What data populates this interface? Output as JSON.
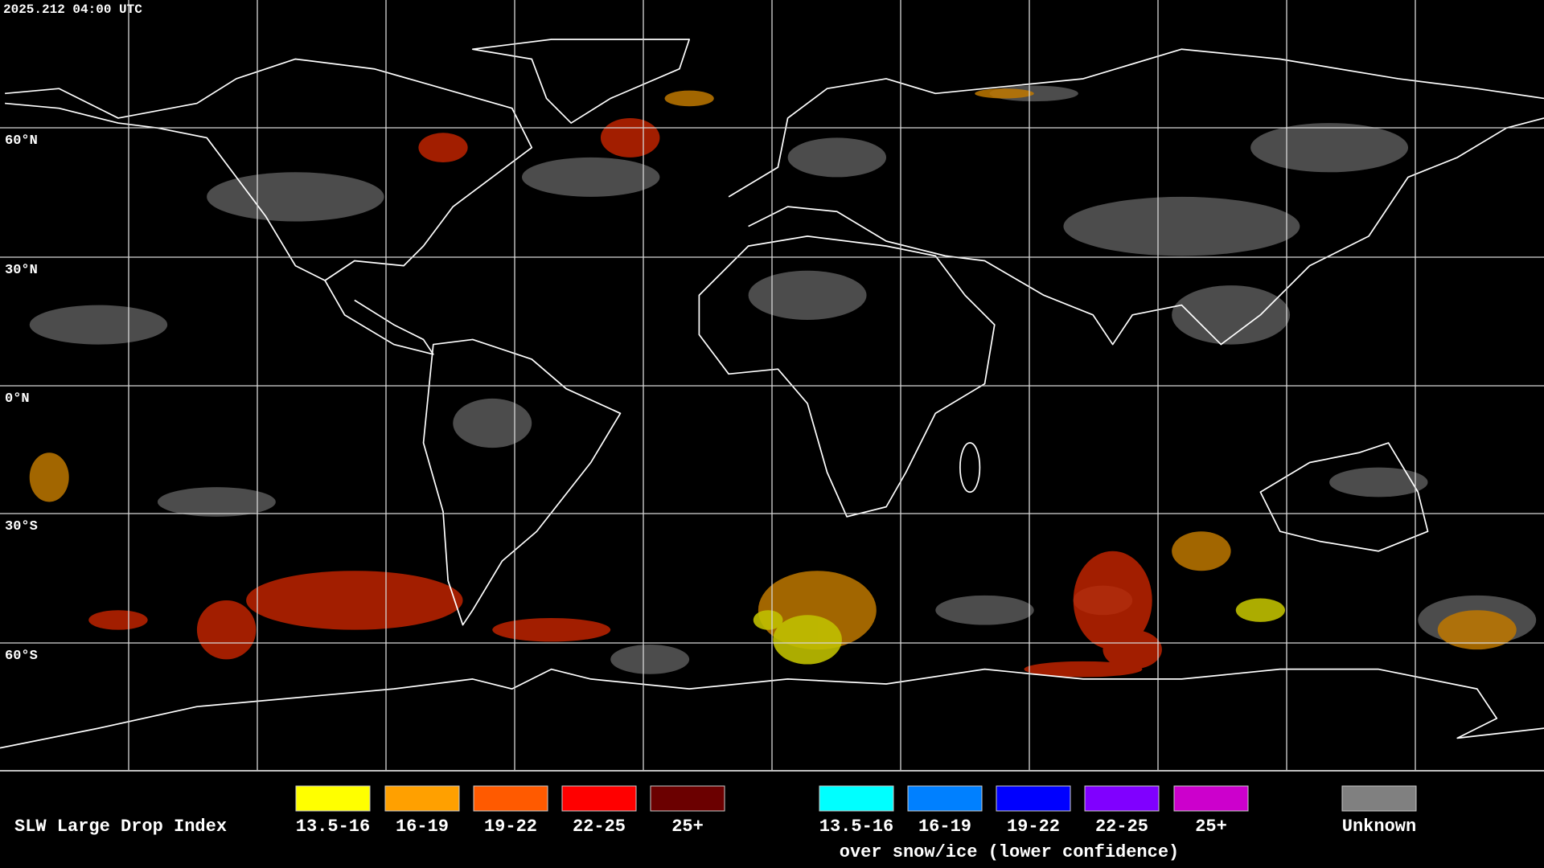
{
  "timestamp": "2025.212 04:00 UTC",
  "latitude_labels": [
    "60°N",
    "30°N",
    "0°N",
    "30°S",
    "60°S"
  ],
  "legend": {
    "title": "SLW Large Drop Index",
    "categories": [
      {
        "label": "13.5-16",
        "color": "#ffff00"
      },
      {
        "label": "16-19",
        "color": "#ffa000"
      },
      {
        "label": "19-22",
        "color": "#ff5a00"
      },
      {
        "label": "22-25",
        "color": "#ff0000"
      },
      {
        "label": "25+",
        "color": "#6b0000"
      }
    ],
    "snow_ice": {
      "categories": [
        {
          "label": "13.5-16",
          "color": "#00ffff"
        },
        {
          "label": "16-19",
          "color": "#0080ff"
        },
        {
          "label": "19-22",
          "color": "#0000ff"
        },
        {
          "label": "22-25",
          "color": "#8000ff"
        },
        {
          "label": "25+",
          "color": "#cc00cc"
        }
      ],
      "note": "over snow/ice (lower confidence)"
    },
    "unknown": {
      "label": "Unknown",
      "color": "#808080"
    }
  }
}
